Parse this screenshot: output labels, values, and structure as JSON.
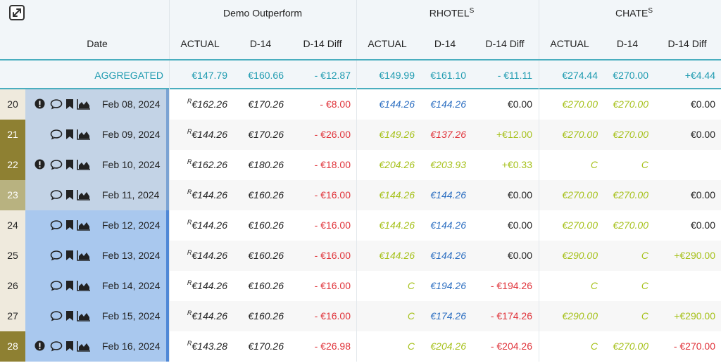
{
  "header": {
    "date_label": "Date",
    "groups": [
      {
        "title": "Demo Outperform",
        "sup": ""
      },
      {
        "title": "RHOTEL",
        "sup": "S"
      },
      {
        "title": "CHATE",
        "sup": "S"
      }
    ],
    "columns": [
      "ACTUAL",
      "D-14",
      "D-14 Diff"
    ]
  },
  "aggregated": {
    "label": "AGGREGATED",
    "values": [
      "€147.79",
      "€160.66",
      "- €12.87",
      "€149.99",
      "€161.10",
      "- €11.11",
      "€274.44",
      "€270.00",
      "+€4.44"
    ]
  },
  "rows": [
    {
      "num": "20",
      "icons": [
        "alert-icon",
        "comment-icon",
        "bookmark-icon",
        "chart-icon"
      ],
      "date": "Feb 08, 2024",
      "cells": [
        [
          "€162.26",
          "R",
          "dark"
        ],
        [
          "€170.26",
          "",
          "dark"
        ],
        [
          "- €8.00",
          "",
          "red"
        ],
        [
          "€144.26",
          "",
          "blue"
        ],
        [
          "€144.26",
          "",
          "blue"
        ],
        [
          "€0.00",
          "",
          "dark"
        ],
        [
          "€270.00",
          "",
          "green"
        ],
        [
          "€270.00",
          "",
          "green"
        ],
        [
          "€0.00",
          "",
          "dark"
        ]
      ]
    },
    {
      "num": "21",
      "icons": [
        "comment-icon",
        "bookmark-icon",
        "chart-icon"
      ],
      "date": "Feb 09, 2024",
      "cells": [
        [
          "€144.26",
          "R",
          "dark"
        ],
        [
          "€170.26",
          "",
          "dark"
        ],
        [
          "- €26.00",
          "",
          "red"
        ],
        [
          "€149.26",
          "",
          "green"
        ],
        [
          "€137.26",
          "",
          "red"
        ],
        [
          "+€12.00",
          "",
          "green"
        ],
        [
          "€270.00",
          "",
          "green"
        ],
        [
          "€270.00",
          "",
          "green"
        ],
        [
          "€0.00",
          "",
          "dark"
        ]
      ]
    },
    {
      "num": "22",
      "icons": [
        "alert-icon",
        "comment-icon",
        "bookmark-icon",
        "chart-icon"
      ],
      "date": "Feb 10, 2024",
      "cells": [
        [
          "€162.26",
          "R",
          "dark"
        ],
        [
          "€180.26",
          "",
          "dark"
        ],
        [
          "- €18.00",
          "",
          "red"
        ],
        [
          "€204.26",
          "",
          "green"
        ],
        [
          "€203.93",
          "",
          "green"
        ],
        [
          "+€0.33",
          "",
          "green"
        ],
        [
          "C",
          "",
          "green"
        ],
        [
          "C",
          "",
          "green"
        ],
        [
          "",
          "",
          "dark"
        ]
      ]
    },
    {
      "num": "23",
      "icons": [
        "comment-icon",
        "bookmark-icon",
        "chart-icon"
      ],
      "date": "Feb 11, 2024",
      "cells": [
        [
          "€144.26",
          "R",
          "dark"
        ],
        [
          "€160.26",
          "",
          "dark"
        ],
        [
          "- €16.00",
          "",
          "red"
        ],
        [
          "€144.26",
          "",
          "green"
        ],
        [
          "€144.26",
          "",
          "blue"
        ],
        [
          "€0.00",
          "",
          "dark"
        ],
        [
          "€270.00",
          "",
          "green"
        ],
        [
          "€270.00",
          "",
          "green"
        ],
        [
          "€0.00",
          "",
          "dark"
        ]
      ]
    },
    {
      "num": "24",
      "icons": [
        "comment-icon",
        "bookmark-icon",
        "chart-icon"
      ],
      "date": "Feb 12, 2024",
      "cells": [
        [
          "€144.26",
          "R",
          "dark"
        ],
        [
          "€160.26",
          "",
          "dark"
        ],
        [
          "- €16.00",
          "",
          "red"
        ],
        [
          "€144.26",
          "",
          "green"
        ],
        [
          "€144.26",
          "",
          "blue"
        ],
        [
          "€0.00",
          "",
          "dark"
        ],
        [
          "€270.00",
          "",
          "green"
        ],
        [
          "€270.00",
          "",
          "green"
        ],
        [
          "€0.00",
          "",
          "dark"
        ]
      ]
    },
    {
      "num": "25",
      "icons": [
        "comment-icon",
        "bookmark-icon",
        "chart-icon"
      ],
      "date": "Feb 13, 2024",
      "cells": [
        [
          "€144.26",
          "R",
          "dark"
        ],
        [
          "€160.26",
          "",
          "dark"
        ],
        [
          "- €16.00",
          "",
          "red"
        ],
        [
          "€144.26",
          "",
          "green"
        ],
        [
          "€144.26",
          "",
          "blue"
        ],
        [
          "€0.00",
          "",
          "dark"
        ],
        [
          "€290.00",
          "",
          "green"
        ],
        [
          "C",
          "",
          "green"
        ],
        [
          "+€290.00",
          "",
          "green"
        ]
      ]
    },
    {
      "num": "26",
      "icons": [
        "comment-icon",
        "bookmark-icon",
        "chart-icon"
      ],
      "date": "Feb 14, 2024",
      "cells": [
        [
          "€144.26",
          "R",
          "dark"
        ],
        [
          "€160.26",
          "",
          "dark"
        ],
        [
          "- €16.00",
          "",
          "red"
        ],
        [
          "C",
          "",
          "green"
        ],
        [
          "€194.26",
          "",
          "blue"
        ],
        [
          "- €194.26",
          "",
          "red"
        ],
        [
          "C",
          "",
          "green"
        ],
        [
          "C",
          "",
          "green"
        ],
        [
          "",
          "",
          "dark"
        ]
      ]
    },
    {
      "num": "27",
      "icons": [
        "comment-icon",
        "bookmark-icon",
        "chart-icon"
      ],
      "date": "Feb 15, 2024",
      "cells": [
        [
          "€144.26",
          "R",
          "dark"
        ],
        [
          "€160.26",
          "",
          "dark"
        ],
        [
          "- €16.00",
          "",
          "red"
        ],
        [
          "C",
          "",
          "green"
        ],
        [
          "€174.26",
          "",
          "blue"
        ],
        [
          "- €174.26",
          "",
          "red"
        ],
        [
          "€290.00",
          "",
          "green"
        ],
        [
          "C",
          "",
          "green"
        ],
        [
          "+€290.00",
          "",
          "green"
        ]
      ]
    },
    {
      "num": "28",
      "icons": [
        "alert-icon",
        "comment-icon",
        "bookmark-icon",
        "chart-icon"
      ],
      "date": "Feb 16, 2024",
      "cells": [
        [
          "€143.28",
          "R",
          "dark"
        ],
        [
          "€170.26",
          "",
          "dark"
        ],
        [
          "- €26.98",
          "",
          "red"
        ],
        [
          "C",
          "",
          "green"
        ],
        [
          "€204.26",
          "",
          "green"
        ],
        [
          "- €204.26",
          "",
          "red"
        ],
        [
          "C",
          "",
          "green"
        ],
        [
          "€270.00",
          "",
          "green"
        ],
        [
          "- €270.00",
          "",
          "red"
        ]
      ]
    }
  ],
  "colors": {
    "accent": "#1f9bb0",
    "green": "#a6c11a",
    "red": "#e0333a",
    "blue": "#2d6fc1",
    "weekend_num": "#8e8032",
    "selection": "#a9c8ee"
  }
}
